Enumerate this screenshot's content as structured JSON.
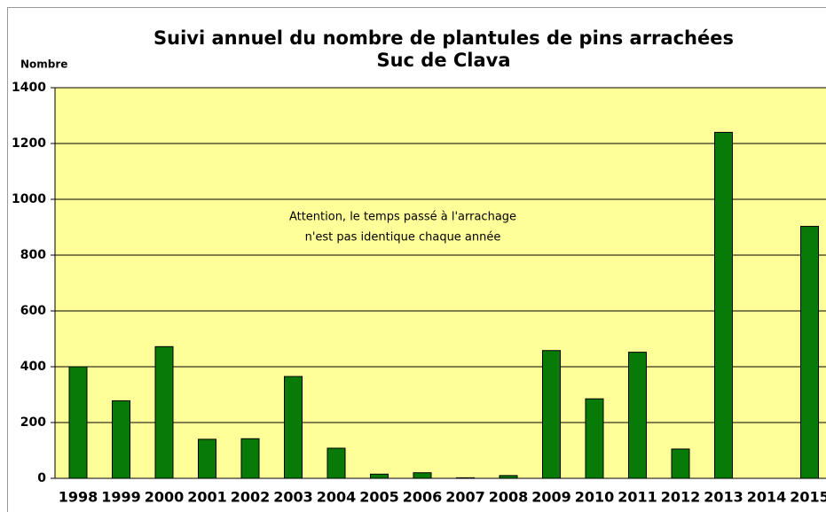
{
  "chart_data": {
    "type": "bar",
    "title": "Suivi annuel du nombre de plantules de pins arrachées",
    "subtitle": "Suc de Clava",
    "y_label": "Nombre",
    "annotation": [
      "Attention, le temps passé à l'arrachage",
      "n'est pas identique chaque année"
    ],
    "categories": [
      "1998",
      "1999",
      "2000",
      "2001",
      "2002",
      "2003",
      "2004",
      "2005",
      "2006",
      "2007",
      "2008",
      "2009",
      "2010",
      "2011",
      "2012",
      "2013",
      "2014",
      "2015"
    ],
    "values": [
      400,
      278,
      472,
      140,
      142,
      365,
      108,
      15,
      20,
      2,
      10,
      458,
      285,
      452,
      105,
      1240,
      null,
      903
    ],
    "color": "#087a08",
    "ylim": [
      0,
      1400
    ],
    "yticks": [
      0,
      200,
      400,
      600,
      800,
      1000,
      1200,
      1400
    ],
    "grid": true
  }
}
